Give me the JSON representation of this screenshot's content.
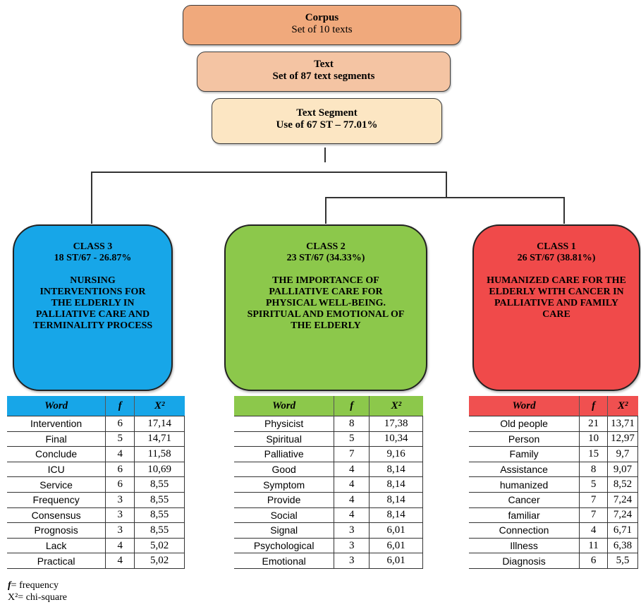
{
  "corpus": {
    "title": "Corpus",
    "subtitle": "Set of 10 texts",
    "color": "#f0a97c"
  },
  "text": {
    "title": "Text",
    "subtitle": "Set of 87 text segments",
    "color": "#f4c4a3"
  },
  "segment": {
    "title": "Text Segment",
    "subtitle": "Use of 67 ST – 77.01%",
    "color": "#fce6c3"
  },
  "classes": [
    {
      "heading": "CLASS 3",
      "share": "18 ST/67 - 26.87%",
      "theme": "NURSING INTERVENTIONS FOR THE ELDERLY IN PALLIATIVE CARE AND TERMINALITY PROCESS",
      "color": "#17a6e8",
      "header_color": "#17a6e8",
      "columns": [
        "Word",
        "f",
        "X²"
      ],
      "rows": [
        [
          "Intervention",
          "6",
          "17,14"
        ],
        [
          "Final",
          "5",
          "14,71"
        ],
        [
          "Conclude",
          "4",
          "11,58"
        ],
        [
          "ICU",
          "6",
          "10,69"
        ],
        [
          "Service",
          "6",
          "8,55"
        ],
        [
          "Frequency",
          "3",
          "8,55"
        ],
        [
          "Consensus",
          "3",
          "8,55"
        ],
        [
          "Prognosis",
          "3",
          "8,55"
        ],
        [
          "Lack",
          "4",
          "5,02"
        ],
        [
          "Practical",
          "4",
          "5,02"
        ]
      ]
    },
    {
      "heading": "CLASS 2",
      "share": "23 ST/67 (34.33%)",
      "theme": "THE IMPORTANCE OF PALLIATIVE CARE FOR PHYSICAL WELL-BEING. SPIRITUAL AND EMOTIONAL OF THE ELDERLY",
      "color": "#8cc84b",
      "header_color": "#8cc84b",
      "columns": [
        "Word",
        "f",
        "X²"
      ],
      "rows": [
        [
          "Physicist",
          "8",
          "17,38"
        ],
        [
          "Spiritual",
          "5",
          "10,34"
        ],
        [
          "Palliative",
          "7",
          "9,16"
        ],
        [
          "Good",
          "4",
          "8,14"
        ],
        [
          "Symptom",
          "4",
          "8,14"
        ],
        [
          "Provide",
          "4",
          "8,14"
        ],
        [
          "Social",
          "4",
          "8,14"
        ],
        [
          "Signal",
          "3",
          "6,01"
        ],
        [
          "Psychological",
          "3",
          "6,01"
        ],
        [
          "Emotional",
          "3",
          "6,01"
        ]
      ]
    },
    {
      "heading": "CLASS 1",
      "share": "26 ST/67 (38.81%)",
      "theme": "HUMANIZED CARE FOR THE ELDERLY WITH CANCER IN PALLIATIVE AND FAMILY CARE",
      "color": "#f04a4a",
      "header_color": "#f05050",
      "columns": [
        "Word",
        "f",
        "X²"
      ],
      "rows": [
        [
          "Old people",
          "21",
          "13,71"
        ],
        [
          "Person",
          "10",
          "12,97"
        ],
        [
          "Family",
          "15",
          "9,7"
        ],
        [
          "Assistance",
          "8",
          "9,07"
        ],
        [
          "humanized",
          "5",
          "8,52"
        ],
        [
          "Cancer",
          "7",
          "7,24"
        ],
        [
          "familiar",
          "7",
          "7,24"
        ],
        [
          "Connection",
          "4",
          "6,71"
        ],
        [
          "Illness",
          "11",
          "6,38"
        ],
        [
          "Diagnosis",
          "6",
          "5,5"
        ]
      ]
    }
  ],
  "legend": {
    "f_symbol": "f",
    "f_text": "= frequency",
    "x_text": "X²= chi-square"
  }
}
